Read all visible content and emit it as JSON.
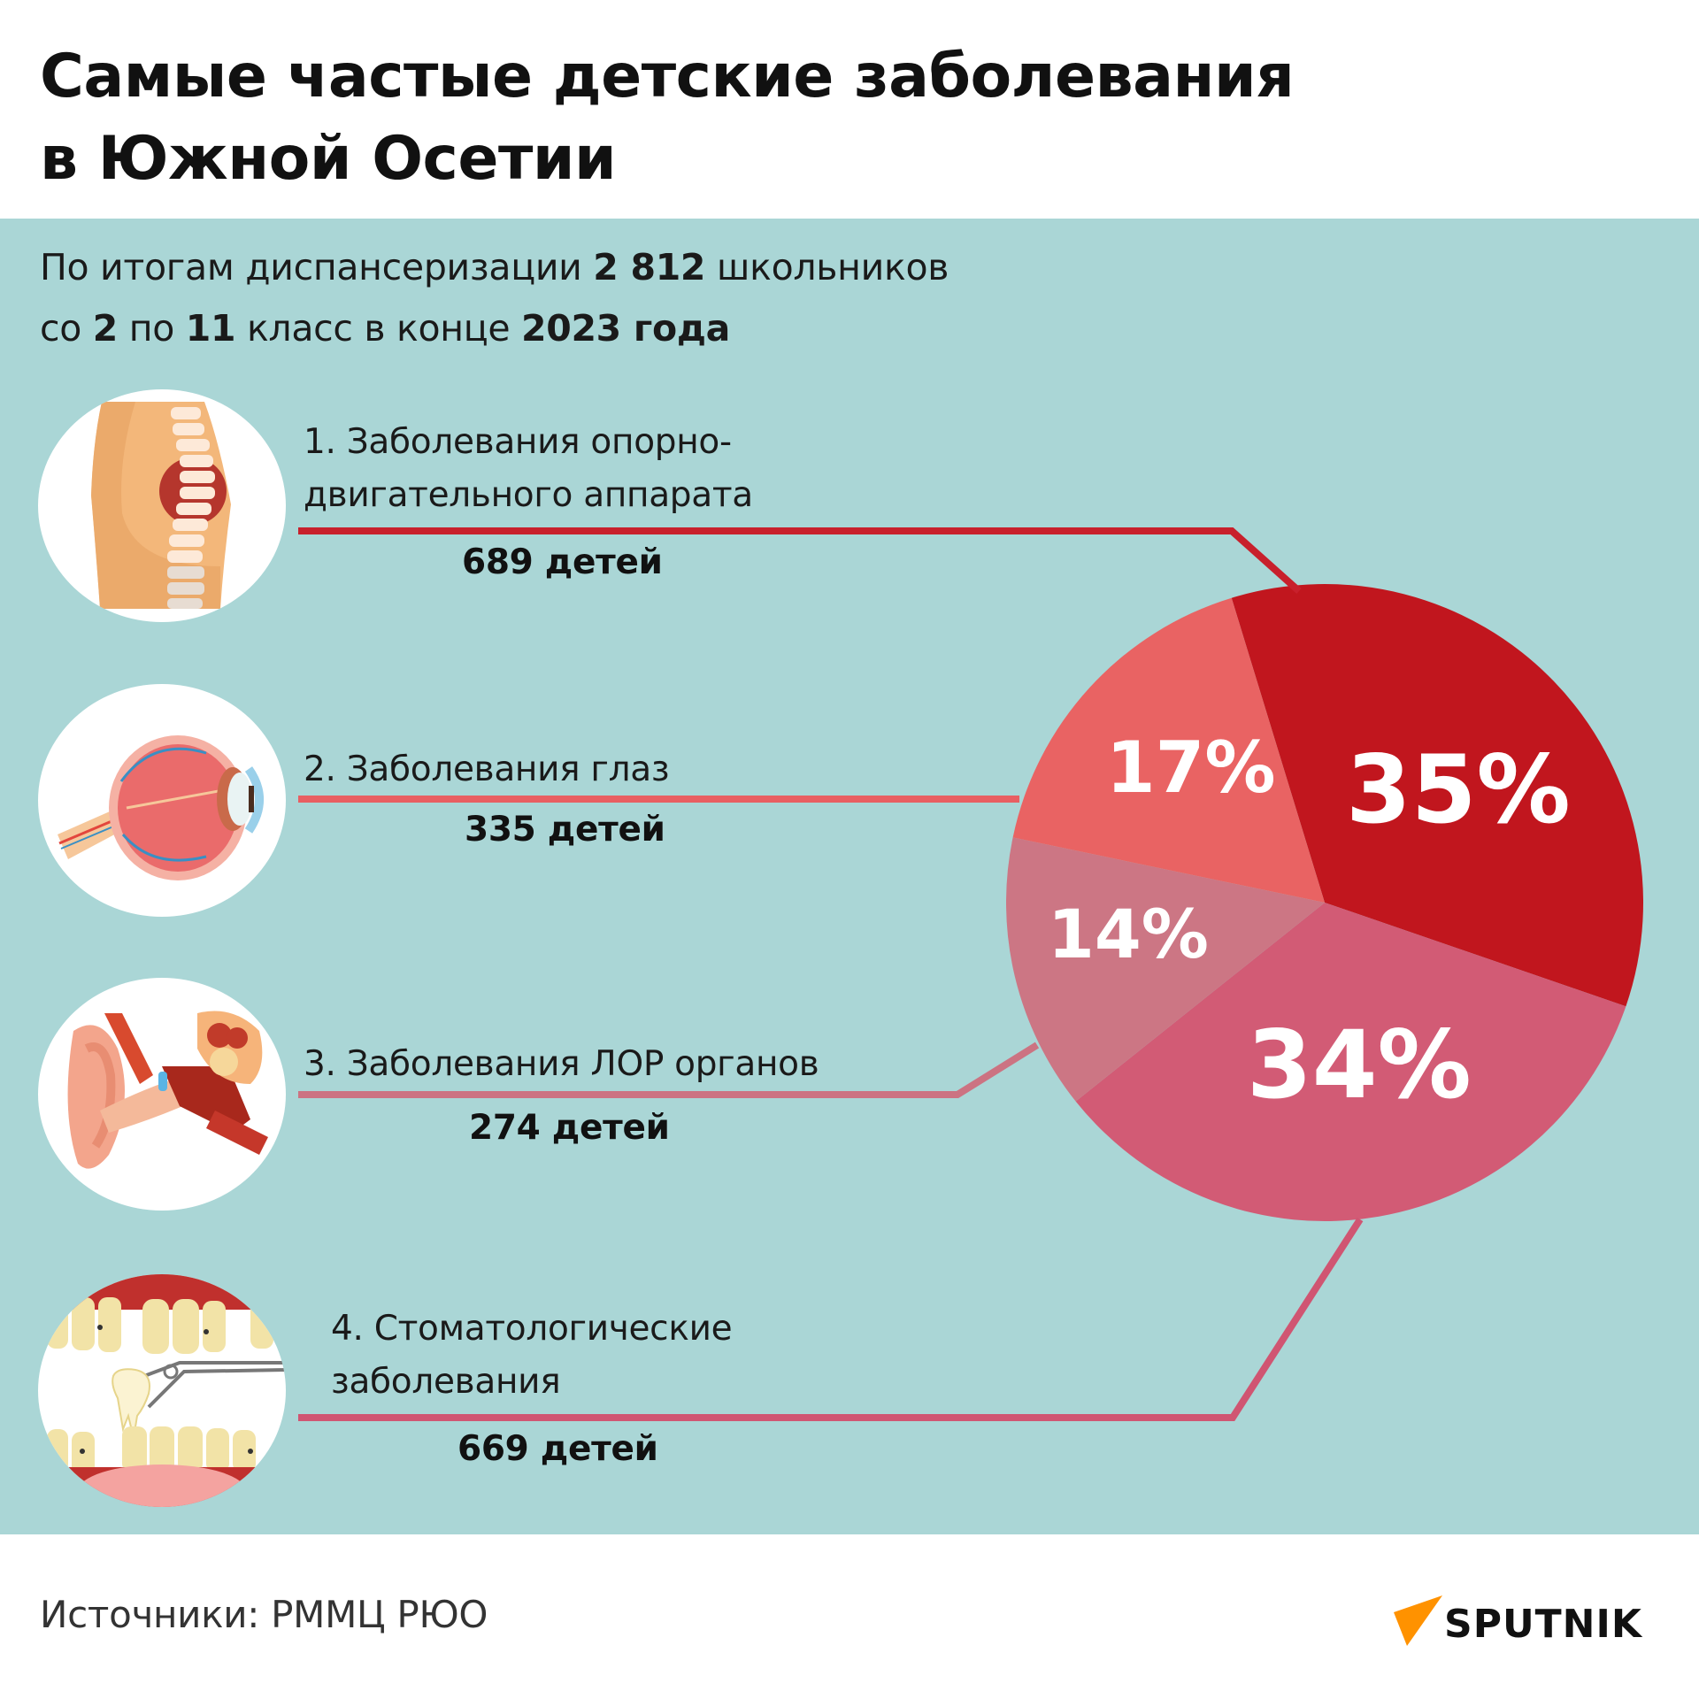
{
  "header": {
    "title_line1": "Самые частые детские заболевания",
    "title_line2": "в Южной Осетии"
  },
  "subtitle": {
    "line1_pre": "По итогам диспансеризации ",
    "line1_bold": "2 812",
    "line1_post": " школьников",
    "line2_pre1": "со ",
    "line2_bold1": "2",
    "line2_pre2": " по ",
    "line2_bold2": "11",
    "line2_pre3": " класс в конце ",
    "line2_bold3": "2023 года"
  },
  "items": [
    {
      "number": "1.",
      "label_line1": "1. Заболевания опорно-",
      "label_line2": "двигательного аппарата",
      "count": "689 детей",
      "icon": "spine-icon",
      "line_color": "#c8202c"
    },
    {
      "number": "2.",
      "label_line1": "2. Заболевания глаз",
      "label_line2": "",
      "count": "335 детей",
      "icon": "eye-icon",
      "line_color": "#e85f62"
    },
    {
      "number": "3.",
      "label_line1": "3. Заболевания ЛОР органов",
      "label_line2": "",
      "count": "274 детей",
      "icon": "ear-icon",
      "line_color": "#cc7382"
    },
    {
      "number": "4.",
      "label_line1": "4. Стоматологические",
      "label_line2": "заболевания",
      "count": "669 детей",
      "icon": "teeth-icon",
      "line_color": "#d05572"
    }
  ],
  "chart_data": {
    "type": "pie",
    "title": "Самые частые детские заболевания в Южной Осетии",
    "subtitle": "По итогам диспансеризации 2 812 школьников со 2 по 11 класс в конце 2023 года",
    "categories": [
      "Заболевания опорно-двигательного аппарата",
      "Стоматологические заболевания",
      "Заболевания ЛОР органов",
      "Заболевания глаз"
    ],
    "values": [
      35,
      34,
      14,
      17
    ],
    "counts": [
      689,
      669,
      274,
      335
    ],
    "labels": [
      "35%",
      "34%",
      "14%",
      "17%"
    ],
    "colors": [
      "#c1161e",
      "#d25b75",
      "#cc7684",
      "#e96363"
    ],
    "unit": "%",
    "total_surveyed": 2812
  },
  "footer": {
    "source": "Источники: РММЦ РЮО",
    "logo_text": "SPUTNIK",
    "logo_color": "#ff9200"
  }
}
